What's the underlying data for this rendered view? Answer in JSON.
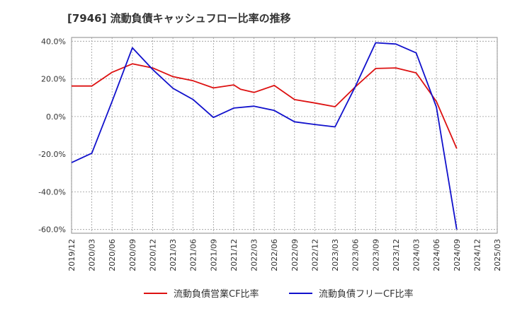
{
  "chart_data": {
    "type": "line",
    "title": "[7946]  流動負債キャッシュフロー比率の推移",
    "xlabel": "",
    "ylabel": "",
    "x": [
      "2019/12",
      "2020/03",
      "2020/06",
      "2020/09",
      "2020/12",
      "2021/03",
      "2021/06",
      "2021/09",
      "2021/12",
      "2022/03",
      "2022/06",
      "2022/09",
      "2022/12",
      "2023/03",
      "2023/06",
      "2023/09",
      "2023/12",
      "2024/03",
      "2024/06",
      "2024/09",
      "2024/12",
      "2025/03"
    ],
    "ylim": [
      -62,
      42
    ],
    "yticks": [
      -60,
      -40,
      -20,
      0,
      20,
      40
    ],
    "ytick_labels": [
      "-60.0%",
      "-40.0%",
      "-20.0%",
      "0.0%",
      "20.0%",
      "40.0%"
    ],
    "grid": true,
    "legend_position": "bottom-center",
    "series": [
      {
        "name": "流動負債営業CF比率",
        "color": "#dd1111",
        "points": [
          [
            "2019/12",
            16.2
          ],
          [
            "2020/03",
            16.2
          ],
          [
            "2020/06",
            23.5
          ],
          [
            "2020/09",
            28.0
          ],
          [
            "2020/12",
            25.8
          ],
          [
            "2021/03",
            21.2
          ],
          [
            "2021/06",
            19.0
          ],
          [
            "2021/09",
            15.2
          ],
          [
            "2021/12",
            16.8
          ],
          [
            "2022/01",
            14.5
          ],
          [
            "2022/03",
            12.8
          ],
          [
            "2022/06",
            16.5
          ],
          [
            "2022/09",
            9.0
          ],
          [
            "2022/12",
            7.2
          ],
          [
            "2023/03",
            5.2
          ],
          [
            "2023/06",
            15.8
          ],
          [
            "2023/09",
            25.5
          ],
          [
            "2023/12",
            25.8
          ],
          [
            "2024/03",
            23.2
          ],
          [
            "2024/06",
            8.0
          ],
          [
            "2024/09",
            -17.0
          ]
        ]
      },
      {
        "name": "流動負債フリーCF比率",
        "color": "#1111cc",
        "points": [
          [
            "2019/12",
            -24.5
          ],
          [
            "2020/03",
            -19.5
          ],
          [
            "2020/06",
            8.0
          ],
          [
            "2020/09",
            36.5
          ],
          [
            "2020/12",
            25.0
          ],
          [
            "2021/03",
            15.0
          ],
          [
            "2021/06",
            9.0
          ],
          [
            "2021/09",
            -0.5
          ],
          [
            "2021/12",
            4.5
          ],
          [
            "2022/03",
            5.5
          ],
          [
            "2022/06",
            3.2
          ],
          [
            "2022/09",
            -2.8
          ],
          [
            "2022/12",
            -4.2
          ],
          [
            "2023/03",
            -5.5
          ],
          [
            "2023/06",
            16.0
          ],
          [
            "2023/09",
            39.2
          ],
          [
            "2023/12",
            38.5
          ],
          [
            "2024/03",
            33.8
          ],
          [
            "2024/06",
            5.0
          ],
          [
            "2024/09",
            -60.0
          ]
        ]
      }
    ]
  }
}
